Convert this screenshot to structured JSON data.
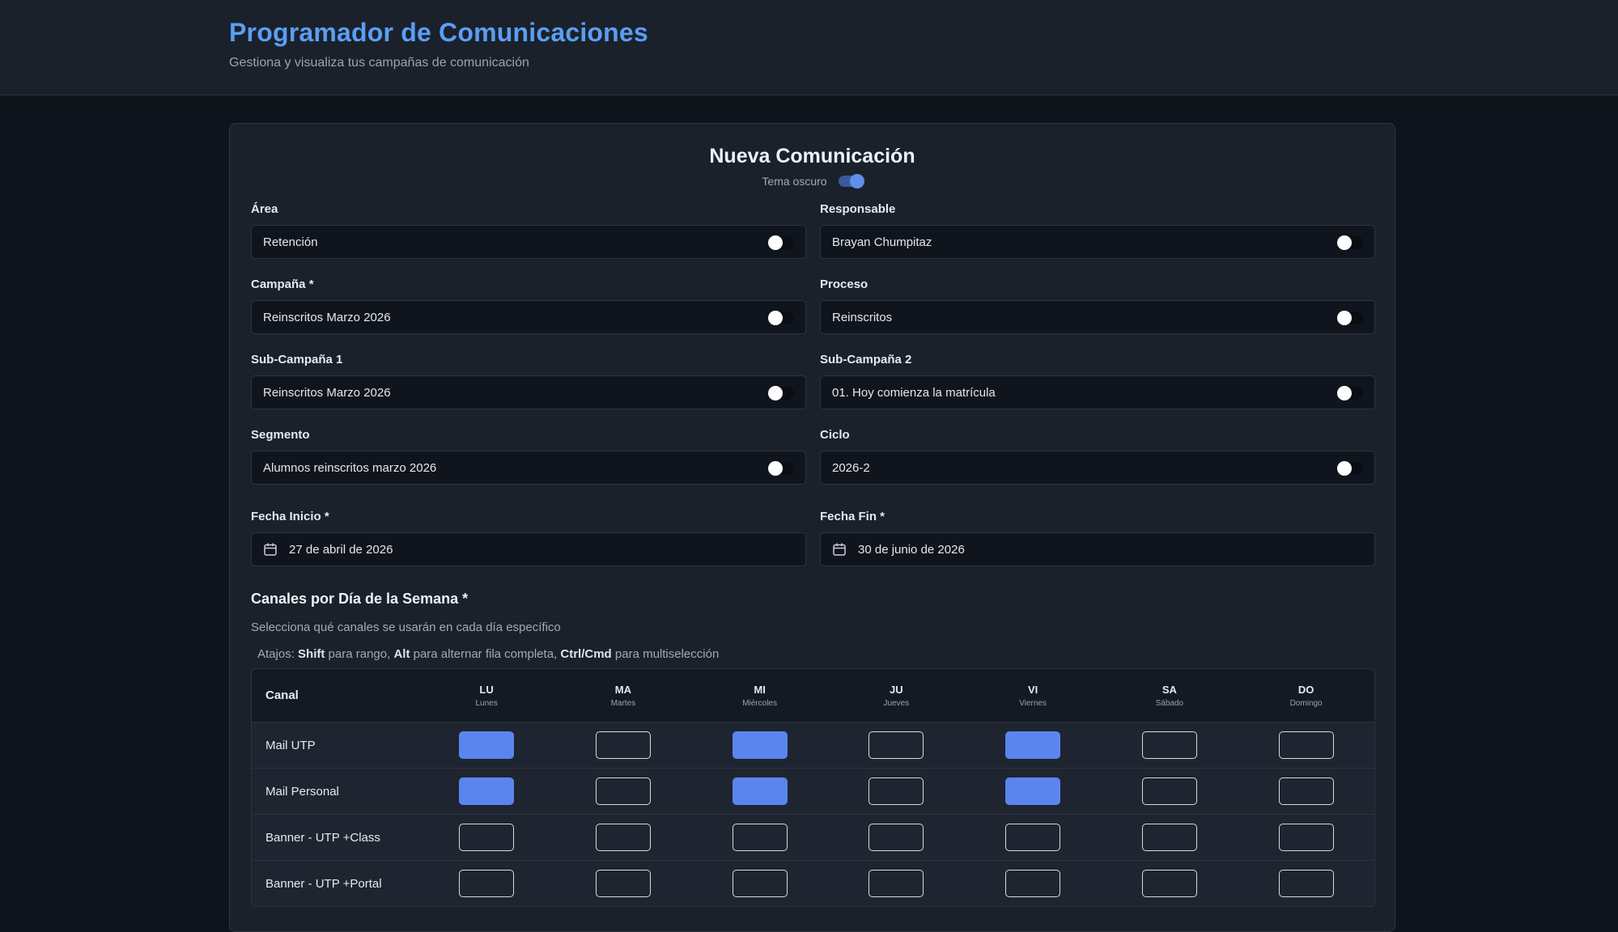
{
  "header": {
    "title": "Programador de Comunicaciones",
    "subtitle": "Gestiona y visualiza tus campañas de comunicación"
  },
  "form": {
    "title": "Nueva Comunicación",
    "theme_label": "Tema oscuro",
    "theme_dark": true,
    "fields": {
      "area": {
        "label": "Área",
        "value": "Retención"
      },
      "responsable": {
        "label": "Responsable",
        "value": "Brayan Chumpitaz"
      },
      "campana": {
        "label": "Campaña *",
        "value": "Reinscritos Marzo 2026"
      },
      "proceso": {
        "label": "Proceso",
        "value": "Reinscritos"
      },
      "subcampana1": {
        "label": "Sub-Campaña 1",
        "value": "Reinscritos Marzo 2026"
      },
      "subcampana2": {
        "label": "Sub-Campaña 2",
        "value": "01. Hoy comienza la matrícula"
      },
      "segmento": {
        "label": "Segmento",
        "value": "Alumnos reinscritos marzo 2026"
      },
      "ciclo": {
        "label": "Ciclo",
        "value": "2026-2"
      }
    },
    "dates": {
      "inicio": {
        "label": "Fecha Inicio *",
        "value": "27 de abril de 2026"
      },
      "fin": {
        "label": "Fecha Fin *",
        "value": "30 de junio de 2026"
      }
    },
    "channels": {
      "title": "Canales por Día de la Semana *",
      "subtitle": "Selecciona qué canales se usarán en cada día específico",
      "shortcuts": {
        "prefix": "Atajos:",
        "shift": "Shift",
        "shift_text": "para rango,",
        "alt": "Alt",
        "alt_text": "para alternar fila completa,",
        "ctrl": "Ctrl/Cmd",
        "ctrl_text": "para multiselección"
      },
      "column_header": "Canal",
      "days": [
        {
          "abbr": "LU",
          "full": "Lunes"
        },
        {
          "abbr": "MA",
          "full": "Martes"
        },
        {
          "abbr": "MI",
          "full": "Miércoles"
        },
        {
          "abbr": "JU",
          "full": "Jueves"
        },
        {
          "abbr": "VI",
          "full": "Viernes"
        },
        {
          "abbr": "SA",
          "full": "Sábado"
        },
        {
          "abbr": "DO",
          "full": "Domingo"
        }
      ],
      "rows": [
        {
          "name": "Mail UTP",
          "selected": [
            true,
            false,
            true,
            false,
            true,
            false,
            false
          ]
        },
        {
          "name": "Mail Personal",
          "selected": [
            true,
            false,
            true,
            false,
            true,
            false,
            false
          ]
        },
        {
          "name": "Banner - UTP +Class",
          "selected": [
            false,
            false,
            false,
            false,
            false,
            false,
            false
          ]
        },
        {
          "name": "Banner - UTP +Portal",
          "selected": [
            false,
            false,
            false,
            false,
            false,
            false,
            false
          ]
        }
      ]
    }
  },
  "colors": {
    "accent": "#5a9ef2",
    "checked": "#5b85ee",
    "background": "#0f141c",
    "card": "#1b212b"
  }
}
